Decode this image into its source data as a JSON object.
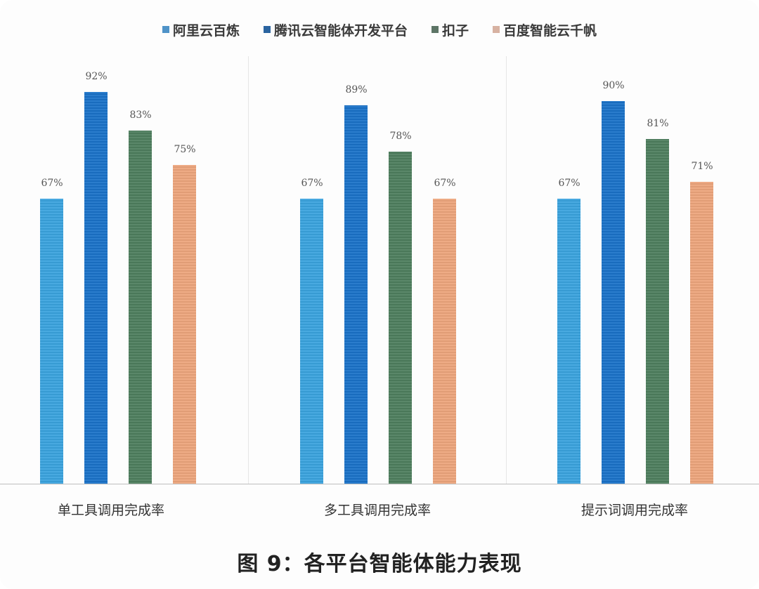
{
  "chart_data": {
    "type": "bar",
    "title": "图 9：各平台智能体能力表现",
    "xlabel": "",
    "ylabel": "",
    "ylim": [
      0,
      100
    ],
    "grid": false,
    "legend_position": "top",
    "categories": [
      "单工具调用完成率",
      "多工具调用完成率",
      "提示词调用完成率"
    ],
    "series": [
      {
        "name": "阿里云百炼",
        "color": "#3aa3de",
        "values": [
          67,
          67,
          67
        ],
        "labels": [
          "67%",
          "67%",
          "67%"
        ]
      },
      {
        "name": "腾讯云智能体开发平台",
        "color": "#1a72c8",
        "values": [
          92,
          89,
          90
        ],
        "labels": [
          "92%",
          "89%",
          "90%"
        ]
      },
      {
        "name": "扣子",
        "color": "#4e7e5e",
        "values": [
          83,
          78,
          81
        ],
        "labels": [
          "83%",
          "78%",
          "81%"
        ]
      },
      {
        "name": "百度智能云千帆",
        "color": "#eda57c",
        "values": [
          75,
          67,
          71
        ],
        "labels": [
          "75%",
          "67%",
          "71%"
        ]
      }
    ]
  }
}
